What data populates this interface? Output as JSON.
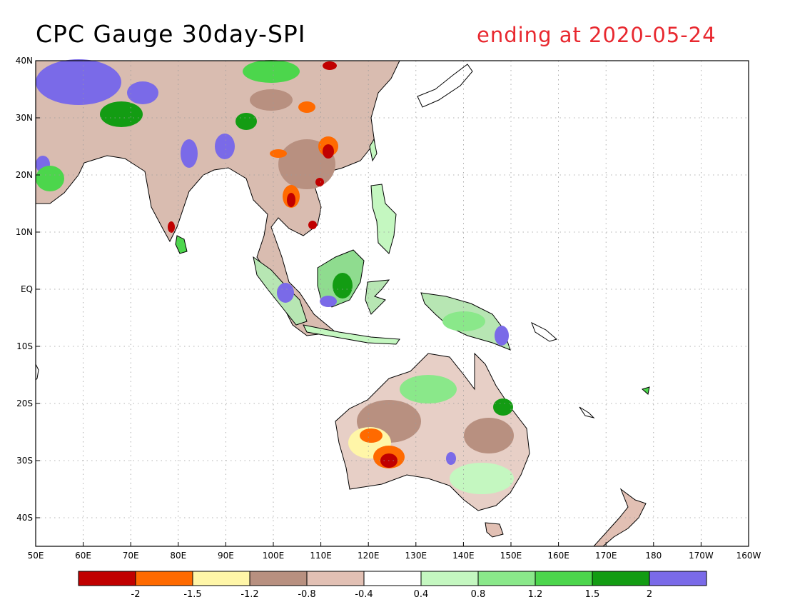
{
  "title": "CPC Gauge 30day-SPI",
  "subtitle": "ending at 2020-05-24",
  "map": {
    "lon_ticks": [
      "50E",
      "60E",
      "70E",
      "80E",
      "90E",
      "100E",
      "110E",
      "120E",
      "130E",
      "140E",
      "150E",
      "160E",
      "170E",
      "180",
      "170W",
      "160W"
    ],
    "lat_ticks": [
      "40N",
      "30N",
      "20N",
      "10N",
      "EQ",
      "10S",
      "20S",
      "30S",
      "40S"
    ],
    "colors": {
      "land_outline": "#000000",
      "gridline": "#9a9a9a"
    }
  },
  "colorbar": {
    "colors": [
      "#c00000",
      "#ff6a00",
      "#fff6a8",
      "#b89080",
      "#e2c0b4",
      "#ffffff",
      "#c4f7c0",
      "#8ae88a",
      "#4cd64c",
      "#139c13",
      "#7a6ae8"
    ],
    "labels": [
      "-2",
      "-1.5",
      "-1.2",
      "-0.8",
      "-0.4",
      "0.4",
      "0.8",
      "1.2",
      "1.5",
      "2"
    ]
  }
}
